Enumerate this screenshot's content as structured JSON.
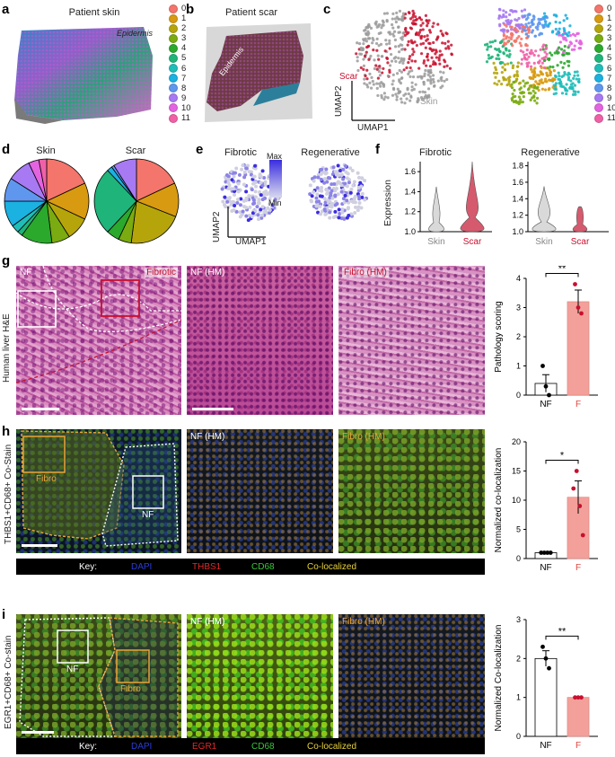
{
  "panels": {
    "a": {
      "letter": "a",
      "title": "Patient skin",
      "annotation": "Epidermis"
    },
    "b": {
      "letter": "b",
      "title": "Patient scar",
      "annotation": "Epidermis"
    },
    "c": {
      "letter": "c",
      "label_scar": "Scar",
      "label_skin": "Skin",
      "axis_y": "UMAP2",
      "axis_x": "UMAP1"
    },
    "d": {
      "letter": "d",
      "title_skin": "Skin",
      "title_scar": "Scar"
    },
    "e": {
      "letter": "e",
      "title_fibrotic": "Fibrotic",
      "title_regenerative": "Regenerative",
      "scale_max": "Max",
      "scale_min": "Min",
      "axis_y": "UMAP2",
      "axis_x": "UMAP1"
    },
    "f": {
      "letter": "f",
      "title_fibrotic": "Fibrotic",
      "title_regenerative": "Regenerative",
      "ylabel": "Expression",
      "ticks": [
        "1.6",
        "1.4",
        "1.2",
        "1.0"
      ],
      "ticks_right": [
        "1.8",
        "1.6",
        "1.4",
        "1.2",
        "1.0"
      ],
      "cat_skin": "Skin",
      "cat_scar": "Scar"
    },
    "g": {
      "letter": "g",
      "side_label": "Human liver H&E",
      "tag_nf": "NF",
      "tag_fibrotic": "Fibrotic",
      "tag_nf_hm": "NF (HM)",
      "tag_fibro_hm": "Fibro (HM)"
    },
    "h": {
      "letter": "h",
      "side_label": "THBS1+CD68+ Co-Stain",
      "tag_fibro": "Fibro",
      "tag_nf": "NF",
      "tag_nf_hm": "NF (HM)",
      "tag_fibro_hm": "Fibro (HM)",
      "key": {
        "label": "Key:",
        "dapi": "DAPI",
        "marker": "THBS1",
        "cd68": "CD68",
        "coloc": "Co-localized"
      }
    },
    "i": {
      "letter": "i",
      "side_label": "EGR1+CD68+ Co-stain",
      "tag_nf": "NF",
      "tag_fibro": "Fibro",
      "tag_nf_hm": "NF (HM)",
      "tag_fibro_hm": "Fibro (HM)",
      "key": {
        "label": "Key:",
        "dapi": "DAPI",
        "marker": "EGR1",
        "cd68": "CD68",
        "coloc": "Co-localized"
      }
    }
  },
  "cluster_legend": {
    "labels": [
      "0",
      "1",
      "2",
      "3",
      "4",
      "5",
      "6",
      "7",
      "8",
      "9",
      "10",
      "11"
    ],
    "colors": [
      "#f4756b",
      "#d89a10",
      "#b5a50b",
      "#7aab10",
      "#2aa92d",
      "#1fb47a",
      "#1fbdb8",
      "#1bb1e1",
      "#5f97ef",
      "#a779f2",
      "#e463e0",
      "#f060a7"
    ]
  },
  "colors": {
    "nf_bar": "#ffffff",
    "f_bar": "#f4a09a",
    "f_text": "#e0453f",
    "dots_f": "#c8102e",
    "scar_red": "#c8102e",
    "skin_grey": "#9a9a9a",
    "fibro_orange": "#e8a53a"
  },
  "chart_data": [
    {
      "type": "pie",
      "title": "Skin",
      "categories": [
        "0",
        "1",
        "2",
        "3",
        "4",
        "5",
        "6",
        "7",
        "8",
        "9",
        "10",
        "11"
      ],
      "values": [
        18,
        14,
        9,
        7,
        12,
        2,
        3,
        10,
        9,
        9,
        4,
        3
      ]
    },
    {
      "type": "pie",
      "title": "Scar",
      "categories": [
        "0",
        "1",
        "2",
        "3",
        "4",
        "5",
        "6",
        "7",
        "8",
        "9",
        "10",
        "11"
      ],
      "values": [
        18,
        13,
        21,
        5,
        5,
        26,
        0,
        2,
        1,
        9,
        0,
        0
      ]
    },
    {
      "type": "bar",
      "panel": "g",
      "categories": [
        "NF",
        "F"
      ],
      "values": [
        0.4,
        3.2
      ],
      "errors": [
        0.3,
        0.4
      ],
      "points": [
        [
          1,
          0.3,
          0
        ],
        [
          3.8,
          3,
          2.8
        ]
      ],
      "ylabel": "Pathology scoring",
      "ylim": [
        0,
        4
      ],
      "yticks": [
        0,
        1,
        2,
        3,
        4
      ],
      "significance": "**"
    },
    {
      "type": "bar",
      "panel": "h",
      "categories": [
        "NF",
        "F"
      ],
      "values": [
        1,
        10.5
      ],
      "errors": [
        0.1,
        2.8
      ],
      "points": [
        [
          1,
          1,
          1,
          1
        ],
        [
          12,
          15,
          9,
          4
        ]
      ],
      "ylabel": "Normalized co-localization",
      "ylim": [
        0,
        20
      ],
      "yticks": [
        0,
        5,
        10,
        15,
        20
      ],
      "significance": "*"
    },
    {
      "type": "bar",
      "panel": "i",
      "categories": [
        "NF",
        "F"
      ],
      "values": [
        2.0,
        1.0
      ],
      "errors": [
        0.2,
        0.02
      ],
      "points": [
        [
          2.3,
          2.0,
          1.75
        ],
        [
          1,
          1,
          1
        ]
      ],
      "ylabel": "Normalized Co-localization",
      "ylim": [
        0,
        3
      ],
      "yticks": [
        0,
        1,
        2,
        3
      ],
      "significance": "**"
    }
  ]
}
